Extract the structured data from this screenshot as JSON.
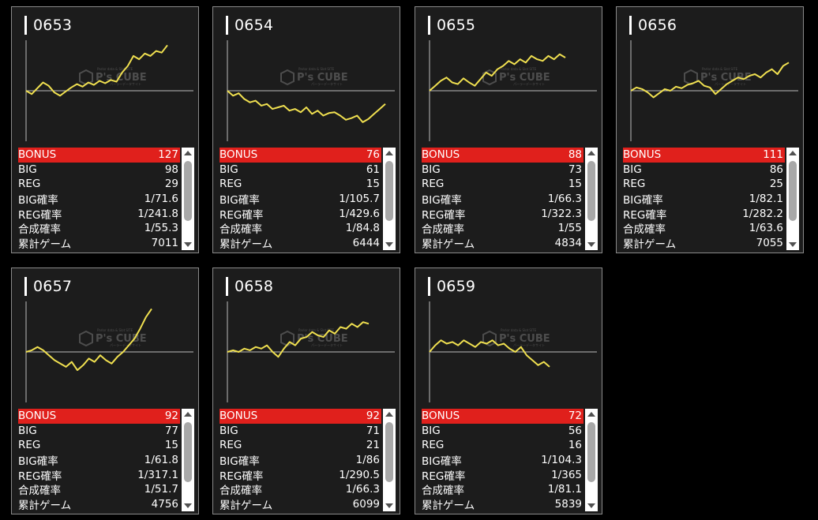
{
  "colors": {
    "accent": "#e0201c",
    "line": "#f0e050",
    "background": "#000000",
    "card": "#1c1c1c"
  },
  "watermark": {
    "brand": "P's CUBE",
    "small_top": "Parlor data & Slot SITE",
    "small_bottom": "パーラーデータサイト"
  },
  "machines": [
    {
      "id": "0653",
      "graph": [
        0,
        -4,
        3,
        10,
        6,
        -2,
        -6,
        -1,
        4,
        8,
        5,
        10,
        7,
        12,
        9,
        13,
        11,
        22,
        30,
        42,
        38,
        45,
        42,
        48,
        46,
        55
      ],
      "stats": [
        {
          "label": "BONUS",
          "value": "127"
        },
        {
          "label": "BIG",
          "value": "98"
        },
        {
          "label": "REG",
          "value": "29"
        },
        {
          "label": "BIG確率",
          "value": "1/71.6"
        },
        {
          "label": "REG確率",
          "value": "1/241.8"
        },
        {
          "label": "合成確率",
          "value": "1/55.3"
        },
        {
          "label": "累計ゲーム",
          "value": "7011"
        }
      ]
    },
    {
      "id": "0654",
      "graph": [
        0,
        -6,
        -3,
        -10,
        -14,
        -12,
        -18,
        -16,
        -22,
        -20,
        -18,
        -24,
        -22,
        -26,
        -20,
        -28,
        -24,
        -30,
        -27,
        -26,
        -30,
        -35,
        -33,
        -30,
        -38,
        -34,
        -28,
        -22,
        -16
      ],
      "stats": [
        {
          "label": "BONUS",
          "value": "76"
        },
        {
          "label": "BIG",
          "value": "61"
        },
        {
          "label": "REG",
          "value": "15"
        },
        {
          "label": "BIG確率",
          "value": "1/105.7"
        },
        {
          "label": "REG確率",
          "value": "1/429.6"
        },
        {
          "label": "合成確率",
          "value": "1/84.8"
        },
        {
          "label": "累計ゲーム",
          "value": "6444"
        }
      ]
    },
    {
      "id": "0655",
      "graph": [
        0,
        6,
        12,
        16,
        10,
        8,
        15,
        10,
        6,
        14,
        22,
        18,
        26,
        30,
        36,
        32,
        38,
        34,
        42,
        38,
        36,
        42,
        38,
        44,
        40
      ],
      "stats": [
        {
          "label": "BONUS",
          "value": "88"
        },
        {
          "label": "BIG",
          "value": "73"
        },
        {
          "label": "REG",
          "value": "15"
        },
        {
          "label": "BIG確率",
          "value": "1/66.3"
        },
        {
          "label": "REG確率",
          "value": "1/322.3"
        },
        {
          "label": "合成確率",
          "value": "1/55"
        },
        {
          "label": "累計ゲーム",
          "value": "4834"
        }
      ]
    },
    {
      "id": "0656",
      "graph": [
        0,
        4,
        2,
        -2,
        -8,
        -3,
        2,
        0,
        5,
        3,
        7,
        9,
        12,
        6,
        4,
        -4,
        2,
        8,
        12,
        16,
        14,
        18,
        20,
        16,
        22,
        26,
        20,
        30,
        34
      ],
      "stats": [
        {
          "label": "BONUS",
          "value": "111"
        },
        {
          "label": "BIG",
          "value": "86"
        },
        {
          "label": "REG",
          "value": "25"
        },
        {
          "label": "BIG確率",
          "value": "1/82.1"
        },
        {
          "label": "REG確率",
          "value": "1/282.2"
        },
        {
          "label": "合成確率",
          "value": "1/63.6"
        },
        {
          "label": "累計ゲーム",
          "value": "7055"
        }
      ]
    },
    {
      "id": "0657",
      "graph": [
        0,
        2,
        6,
        2,
        -4,
        -10,
        -14,
        -18,
        -12,
        -22,
        -16,
        -8,
        -12,
        -4,
        -10,
        -14,
        -6,
        0,
        8,
        16,
        28,
        42,
        52
      ],
      "stats": [
        {
          "label": "BONUS",
          "value": "92"
        },
        {
          "label": "BIG",
          "value": "77"
        },
        {
          "label": "REG",
          "value": "15"
        },
        {
          "label": "BIG確率",
          "value": "1/61.8"
        },
        {
          "label": "REG確率",
          "value": "1/317.1"
        },
        {
          "label": "合成確率",
          "value": "1/51.7"
        },
        {
          "label": "累計ゲーム",
          "value": "4756"
        }
      ]
    },
    {
      "id": "0658",
      "graph": [
        0,
        2,
        0,
        4,
        2,
        6,
        4,
        8,
        0,
        -6,
        4,
        12,
        8,
        16,
        18,
        24,
        20,
        18,
        26,
        22,
        30,
        28,
        34,
        30,
        36,
        34
      ],
      "stats": [
        {
          "label": "BONUS",
          "value": "92"
        },
        {
          "label": "BIG",
          "value": "71"
        },
        {
          "label": "REG",
          "value": "21"
        },
        {
          "label": "BIG確率",
          "value": "1/86"
        },
        {
          "label": "REG確率",
          "value": "1/290.5"
        },
        {
          "label": "合成確率",
          "value": "1/66.3"
        },
        {
          "label": "累計ゲーム",
          "value": "6099"
        }
      ]
    },
    {
      "id": "0659",
      "graph": [
        0,
        8,
        14,
        10,
        12,
        8,
        14,
        10,
        6,
        12,
        10,
        14,
        8,
        10,
        4,
        0,
        6,
        -4,
        -10,
        -16,
        -12,
        -18
      ],
      "stats": [
        {
          "label": "BONUS",
          "value": "72"
        },
        {
          "label": "BIG",
          "value": "56"
        },
        {
          "label": "REG",
          "value": "16"
        },
        {
          "label": "BIG確率",
          "value": "1/104.3"
        },
        {
          "label": "REG確率",
          "value": "1/365"
        },
        {
          "label": "合成確率",
          "value": "1/81.1"
        },
        {
          "label": "累計ゲーム",
          "value": "5839"
        }
      ]
    }
  ]
}
